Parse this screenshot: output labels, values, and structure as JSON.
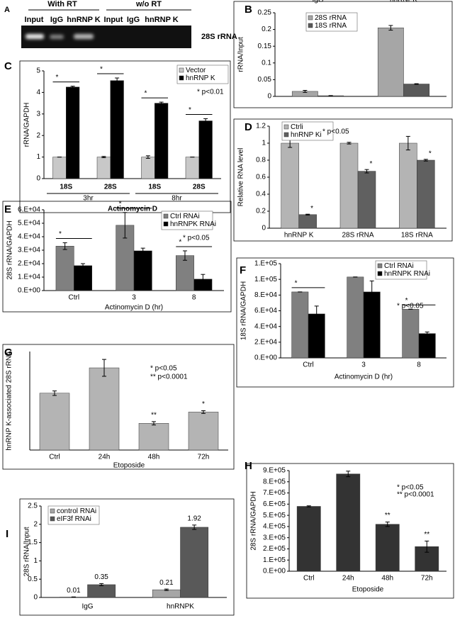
{
  "gel": {
    "panel": "A",
    "groups": [
      "With RT",
      "w/o RT"
    ],
    "lanes": [
      "Input",
      "IgG",
      "hnRNP K",
      "Input",
      "IgG",
      "hnRNP K"
    ],
    "band_label": "28S rRNA"
  },
  "chart_data": [
    {
      "type": "bar",
      "panel": "B",
      "ylabel": "rRNA/Input",
      "categories": [
        "IgG",
        "hnRNPK"
      ],
      "series": [
        {
          "name": "28S rRNA",
          "color": "#a6a6a6",
          "values": [
            0.015,
            0.205
          ],
          "errors": [
            0.003,
            0.007
          ]
        },
        {
          "name": "18S rRNA",
          "color": "#595959",
          "values": [
            0.002,
            0.037
          ],
          "errors": [
            0.0005,
            0.001
          ]
        }
      ],
      "ylim": [
        0,
        0.25
      ],
      "yticks": [
        0,
        0.05,
        0.1,
        0.15,
        0.2,
        0.25
      ],
      "legend": "top-left"
    },
    {
      "type": "bar",
      "panel": "C",
      "ylabel": "rRNA/GAPDH",
      "xlabel": "Actinomycin D",
      "categories": [
        "18S",
        "28S",
        "18S",
        "28S"
      ],
      "groups": [
        "3hr",
        "8hr"
      ],
      "series": [
        {
          "name": "Vector",
          "color": "#c8c8c8",
          "values": [
            1,
            1,
            1,
            1
          ],
          "errors": [
            0,
            0.03,
            0.06,
            0
          ]
        },
        {
          "name": "hnRNP K",
          "color": "#000000",
          "values": [
            4.25,
            4.55,
            3.5,
            2.68
          ],
          "errors": [
            0.04,
            0.12,
            0.05,
            0.1
          ]
        }
      ],
      "ylim": [
        0,
        5
      ],
      "yticks": [
        0,
        1,
        2,
        3,
        4,
        5
      ],
      "legend": "top-right",
      "significance": [
        "*",
        "*",
        "*",
        "*"
      ],
      "sig_lines": true,
      "notes": [
        "* p<0.01"
      ]
    },
    {
      "type": "bar",
      "panel": "D",
      "ylabel": "Relative RNA level",
      "categories": [
        "hnRNP K",
        "28S rRNA",
        "18S rRNA"
      ],
      "series": [
        {
          "name": "Ctrli",
          "color": "#b4b4b4",
          "values": [
            1,
            1,
            1
          ],
          "errors": [
            0.05,
            0.01,
            0.08
          ]
        },
        {
          "name": "hnRNP Ki",
          "color": "#606060",
          "values": [
            0.16,
            0.67,
            0.8
          ],
          "errors": [
            0.005,
            0.02,
            0.01
          ]
        }
      ],
      "ylim": [
        0,
        1.2
      ],
      "yticks": [
        0,
        0.2,
        0.4,
        0.6,
        0.8,
        1,
        1.2
      ],
      "legend": "top-left",
      "significance": [
        "*",
        "*",
        "*"
      ],
      "sig_lines": false,
      "notes": [
        "* p<0.05"
      ]
    },
    {
      "type": "bar",
      "panel": "E",
      "ylabel": "28S rRNA/GAPDH",
      "xlabel": "Actinomycin D (hr)",
      "categories": [
        "Ctrl",
        "3",
        "8"
      ],
      "series": [
        {
          "name": "Ctrl RNAi",
          "color": "#808080",
          "values": [
            33000,
            48500,
            26000
          ],
          "errors": [
            2500,
            9500,
            3500
          ]
        },
        {
          "name": "hnRNPK RNAi",
          "color": "#000000",
          "values": [
            18500,
            29500,
            8500
          ],
          "errors": [
            1500,
            2000,
            3500
          ]
        }
      ],
      "ylim": [
        0,
        60000
      ],
      "yticks": [
        {
          "value": 0,
          "label": "0.E+00"
        },
        {
          "value": 10000,
          "label": "1.E+04"
        },
        {
          "value": 20000,
          "label": "2.E+04"
        },
        {
          "value": 30000,
          "label": "3.E+04"
        },
        {
          "value": 40000,
          "label": "4.E+04"
        },
        {
          "value": 50000,
          "label": "5.E+04"
        },
        {
          "value": 60000,
          "label": "6.E+04"
        }
      ],
      "legend": "top-right",
      "significance": [
        "*",
        "*",
        "*"
      ],
      "sig_lines": true,
      "notes": [
        "* p<0.05"
      ]
    },
    {
      "type": "bar",
      "panel": "F",
      "ylabel": "18S rRNA/GAPDH",
      "xlabel": "Actinomycin D (hr)",
      "categories": [
        "Ctrl",
        "3",
        "8"
      ],
      "series": [
        {
          "name": "Ctrl RNAi",
          "color": "#808080",
          "values": [
            84000,
            103000,
            62000
          ],
          "errors": [
            0,
            0,
            0
          ]
        },
        {
          "name": "hnRNPK RNAi",
          "color": "#000000",
          "values": [
            56000,
            84000,
            31000
          ],
          "errors": [
            10000,
            14000,
            2000
          ]
        }
      ],
      "ylim": [
        0,
        120000
      ],
      "yticks": [
        {
          "value": 0,
          "label": "0.E+00"
        },
        {
          "value": 20000,
          "label": "2.E+04"
        },
        {
          "value": 40000,
          "label": "4.E+04"
        },
        {
          "value": 60000,
          "label": "6.E+04"
        },
        {
          "value": 80000,
          "label": "8.E+04"
        },
        {
          "value": 100000,
          "label": "1.E+05"
        },
        {
          "value": 120000,
          "label": "1.E+05"
        }
      ],
      "legend": "top-right",
      "significance": [
        "*",
        null,
        "*"
      ],
      "sig_lines": true,
      "notes": [
        "* p<0.05"
      ]
    },
    {
      "type": "bar",
      "panel": "G",
      "ylabel": "hnRNP K-associated 28S rRNA",
      "xlabel": "Etoposide",
      "categories": [
        "Ctrl",
        "24h",
        "48h",
        "72h"
      ],
      "values": [
        2.02,
        2.92,
        0.95,
        1.35
      ],
      "errors": [
        0.08,
        0.3,
        0.06,
        0.05
      ],
      "color": "#b4b4b4",
      "ylim": [
        0,
        3.5
      ],
      "significance": [
        null,
        null,
        "**",
        "*"
      ],
      "sig_lines": false,
      "notes": [
        "* p<0.05",
        "** p<0.0001"
      ]
    },
    {
      "type": "bar",
      "panel": "H",
      "ylabel": "28S rRNA/GAPDH",
      "xlabel": "Etoposide",
      "categories": [
        "Ctrl",
        "24h",
        "48h",
        "72h"
      ],
      "values": [
        580000,
        870000,
        420000,
        220000
      ],
      "errors": [
        5000,
        25000,
        20000,
        50000
      ],
      "color": "#333333",
      "ylim": [
        0,
        900000
      ],
      "yticks": [
        {
          "value": 0,
          "label": "0.E+00"
        },
        {
          "value": 100000,
          "label": "1.E+05"
        },
        {
          "value": 200000,
          "label": "2.E+05"
        },
        {
          "value": 300000,
          "label": "3.E+05"
        },
        {
          "value": 400000,
          "label": "4.E+05"
        },
        {
          "value": 500000,
          "label": "5.E+05"
        },
        {
          "value": 600000,
          "label": "6.E+05"
        },
        {
          "value": 700000,
          "label": "7.E+05"
        },
        {
          "value": 800000,
          "label": "8.E+05"
        },
        {
          "value": 900000,
          "label": "9.E+05"
        }
      ],
      "significance": [
        null,
        null,
        "**",
        "**"
      ],
      "sig_lines": false,
      "notes": [
        "* p<0.05",
        "** p<0.0001"
      ]
    },
    {
      "type": "bar",
      "panel": "I",
      "ylabel": "28S rRNA/Input",
      "categories": [
        "IgG",
        "hnRNPK"
      ],
      "series": [
        {
          "name": "control RNAi",
          "color": "#a6a6a6",
          "values": [
            0.01,
            0.21
          ],
          "errors": [
            0.005,
            0.02
          ]
        },
        {
          "name": "eIF3f RNAi",
          "color": "#595959",
          "values": [
            0.35,
            1.92
          ],
          "errors": [
            0.03,
            0.06
          ]
        }
      ],
      "ylim": [
        0,
        2.5
      ],
      "yticks": [
        0,
        0.5,
        1,
        1.5,
        2,
        2.5
      ],
      "legend": "top-left",
      "show_values": true
    }
  ]
}
